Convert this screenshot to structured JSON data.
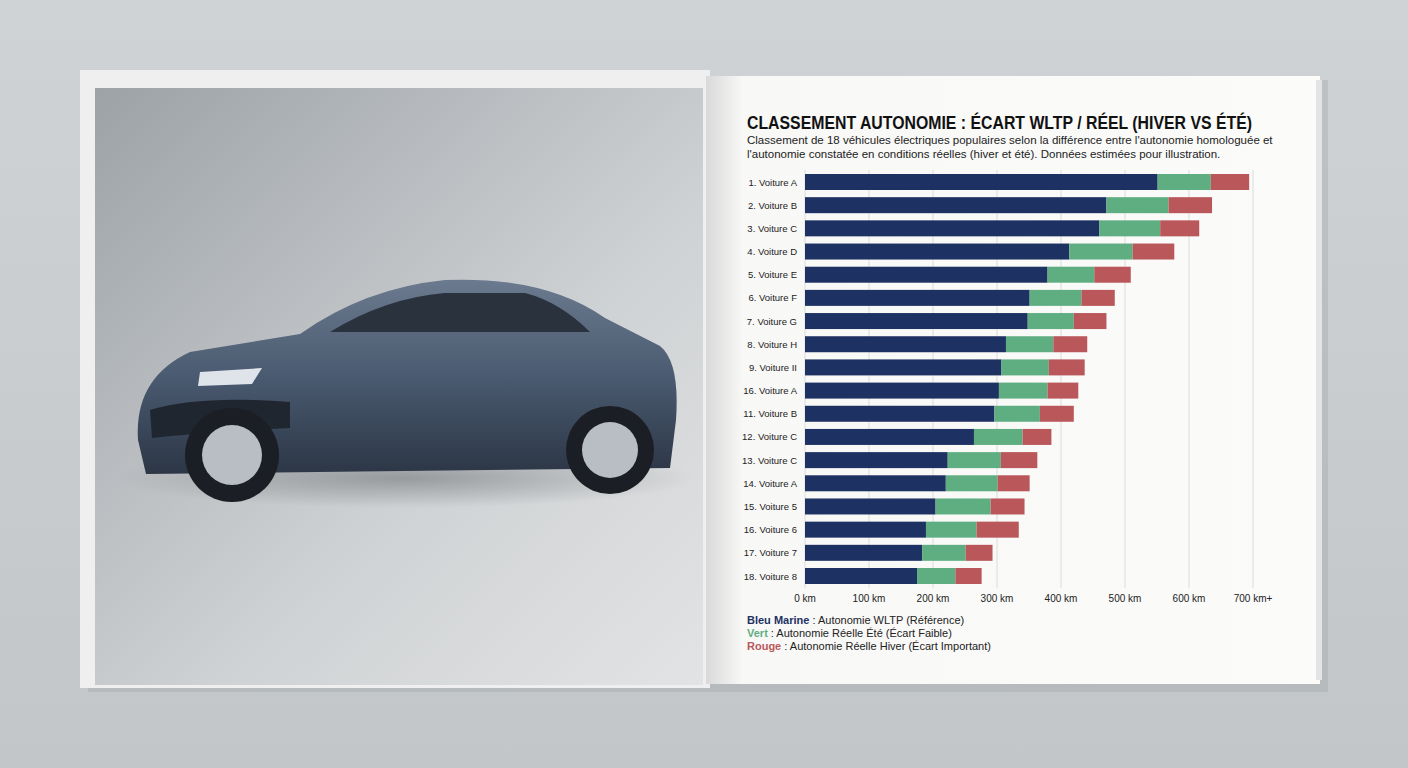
{
  "chart_data": {
    "type": "bar",
    "orientation": "horizontal",
    "stacked": true,
    "grid": true,
    "legend": "bottom",
    "title": "CLASSEMENT AUTONOMIE : ÉCART WLTP / RÉEL (HIVER VS ÉTÉ)",
    "subtitle": "Classement de 18 véhicules électriques populaires selon la différence entre l'autonomie homologuée et l'autonomie constatée en conditions réelles (hiver et été). Données estimées pour illustration.",
    "categories": [
      "1. Voiture A",
      "2. Voiture B",
      "3. Voiture C",
      "4. Voiture D",
      "5. Voiture E",
      "6. Voiture F",
      "7. Voiture G",
      "8. Voiture H",
      "9. Voiture II",
      "16. Voiture A",
      "11. Voiture B",
      "12. Voiture C",
      "13. Voiture C",
      "14. Voiture A",
      "15. Voiture 5",
      "16. Voiture 6",
      "17. Voiture 7",
      "18. Voiture 8"
    ],
    "xlim": [
      0,
      700
    ],
    "xticks": [
      {
        "value": 0,
        "label": "0 km"
      },
      {
        "value": 100,
        "label": "100 km"
      },
      {
        "value": 200,
        "label": "200 km"
      },
      {
        "value": 300,
        "label": "300 km"
      },
      {
        "value": 400,
        "label": "400 km"
      },
      {
        "value": 500,
        "label": "500 km"
      },
      {
        "value": 600,
        "label": "600 km"
      },
      {
        "value": 700,
        "label": "700 km+"
      }
    ],
    "series": [
      {
        "name": "Bleu Marine : Autonomie WLTP (Référence)",
        "color": "#1e3163",
        "values": [
          551,
          471,
          460,
          413,
          379,
          351,
          348,
          314,
          307,
          303,
          296,
          264,
          223,
          220,
          204,
          189,
          183,
          175
        ]
      },
      {
        "name": "Vert : Autonomie Réelle Été (Écart Faible)",
        "color": "#5fae82",
        "values": [
          83,
          97,
          95,
          99,
          73,
          81,
          72,
          74,
          74,
          76,
          71,
          76,
          83,
          81,
          86,
          79,
          68,
          60
        ]
      },
      {
        "name": "Rouge : Autonomie Réelle Hiver (Écart Important)",
        "color": "#b9575a",
        "values": [
          60,
          68,
          61,
          65,
          57,
          52,
          51,
          53,
          56,
          48,
          53,
          45,
          57,
          50,
          53,
          66,
          42,
          41
        ]
      }
    ]
  }
}
